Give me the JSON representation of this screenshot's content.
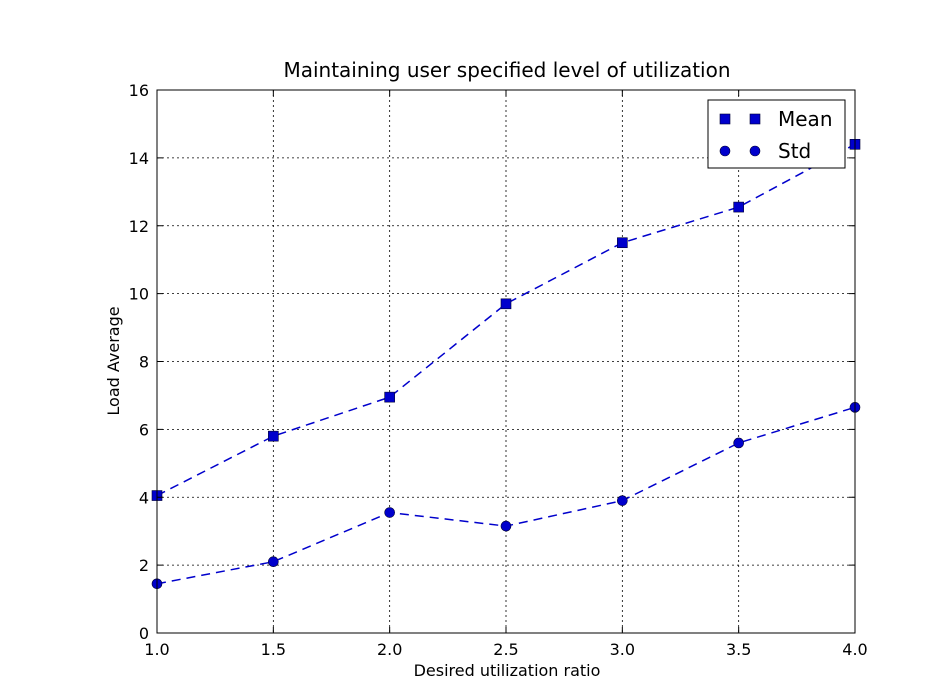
{
  "chart_data": {
    "type": "line",
    "title": "Maintaining user specified level of utilization",
    "xlabel": "Desired utilization ratio",
    "ylabel": "Load Average",
    "xlim": [
      1.0,
      4.0
    ],
    "ylim": [
      0,
      16
    ],
    "x_ticks": [
      "1.0",
      "1.5",
      "2.0",
      "2.5",
      "3.0",
      "3.5",
      "4.0"
    ],
    "y_ticks": [
      "0",
      "2",
      "4",
      "6",
      "8",
      "10",
      "12",
      "14",
      "16"
    ],
    "grid": true,
    "legend_position": "top-right",
    "x": [
      1.0,
      1.5,
      2.0,
      2.5,
      3.0,
      3.5,
      4.0
    ],
    "series": [
      {
        "name": "Mean",
        "marker": "square",
        "line_style": "dashed",
        "color": "#0000cc",
        "values": [
          4.05,
          5.8,
          6.95,
          9.7,
          11.5,
          12.55,
          14.4
        ]
      },
      {
        "name": "Std",
        "marker": "circle",
        "line_style": "dashed",
        "color": "#0000cc",
        "values": [
          1.45,
          2.1,
          3.55,
          3.15,
          3.9,
          5.6,
          6.65
        ]
      }
    ]
  }
}
